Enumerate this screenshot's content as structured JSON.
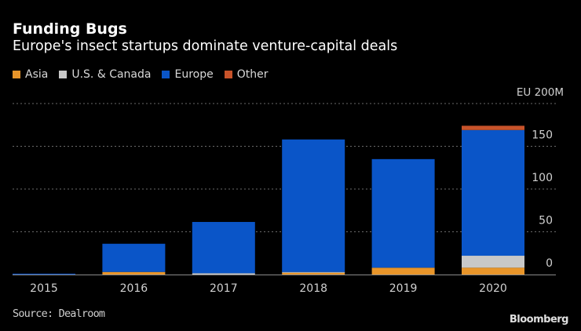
{
  "header": {
    "title": "Funding Bugs",
    "subtitle": "Europe's insect startups dominate venture-capital deals"
  },
  "footer": {
    "source": "Source: Dealroom",
    "brand": "Bloomberg"
  },
  "chart_data": {
    "type": "bar",
    "stacked": true,
    "title": "Funding Bugs",
    "subtitle": "Europe's insect startups dominate venture-capital deals",
    "xlabel": "",
    "ylabel": "",
    "unit_label": "EU 200M",
    "categories": [
      "2015",
      "2016",
      "2017",
      "2018",
      "2019",
      "2020"
    ],
    "series": [
      {
        "name": "Asia",
        "color": "#e8952a",
        "values": [
          0,
          3,
          0,
          2,
          8,
          8
        ]
      },
      {
        "name": "U.S. & Canada",
        "color": "#c8c8c8",
        "values": [
          0,
          0,
          1.5,
          1,
          0,
          14
        ]
      },
      {
        "name": "Europe",
        "color": "#0a55c8",
        "values": [
          1,
          33,
          60,
          155,
          127,
          147
        ]
      },
      {
        "name": "Other",
        "color": "#c8532a",
        "values": [
          0,
          0,
          0,
          0,
          0,
          5
        ]
      }
    ],
    "ylim": [
      0,
      200
    ],
    "yticks": [
      0,
      50,
      100,
      150
    ],
    "ytick_labels": [
      "0",
      "50",
      "100",
      "150"
    ],
    "grid": true,
    "legend_position": "top-left",
    "y_axis_side": "right",
    "source": "Source: Dealroom"
  }
}
